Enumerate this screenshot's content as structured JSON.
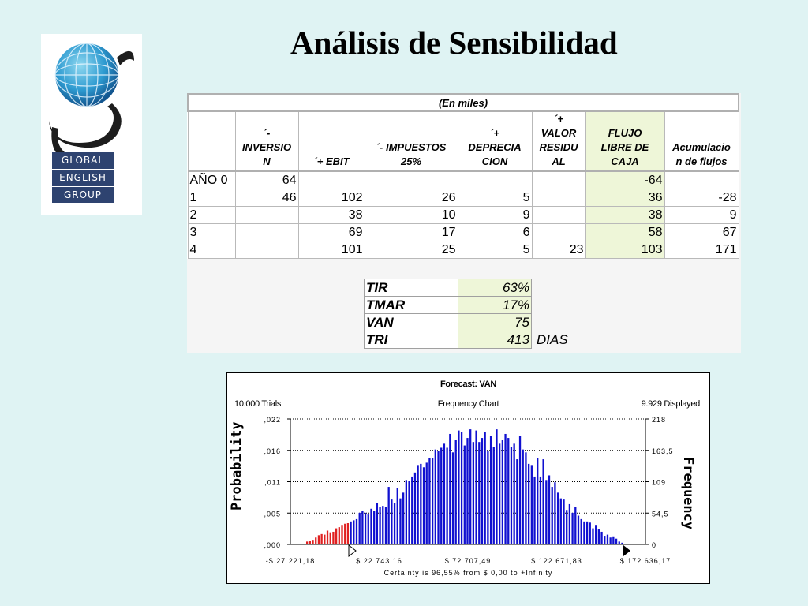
{
  "title": "Análisis de Sensibilidad",
  "logo": {
    "lines": [
      "GLOBAL",
      "ENGLISH",
      "GROUP"
    ]
  },
  "table": {
    "caption": "(En miles)",
    "headers": [
      {
        "lines": [
          ""
        ]
      },
      {
        "lines": [
          "´-",
          "INVERSIO",
          "N"
        ]
      },
      {
        "lines": [
          "´+ EBIT"
        ]
      },
      {
        "lines": [
          "´- IMPUESTOS",
          "25%"
        ]
      },
      {
        "lines": [
          "´+",
          "DEPRECIA",
          "CION"
        ]
      },
      {
        "lines": [
          "´+",
          "VALOR",
          "RESIDU",
          "AL"
        ]
      },
      {
        "lines": [
          "FLUJO",
          "LIBRE DE",
          "CAJA"
        ]
      },
      {
        "lines": [
          "Acumulacio",
          "n de flujos"
        ]
      }
    ],
    "rows": [
      [
        "AÑO 0",
        "64",
        "",
        "",
        "",
        "",
        "-64",
        ""
      ],
      [
        "1",
        "46",
        "102",
        "26",
        "5",
        "",
        "36",
        "-28"
      ],
      [
        "2",
        "",
        "38",
        "10",
        "9",
        "",
        "38",
        "9"
      ],
      [
        "3",
        "",
        "69",
        "17",
        "6",
        "",
        "58",
        "67"
      ],
      [
        "4",
        "",
        "101",
        "25",
        "5",
        "23",
        "103",
        "171"
      ]
    ]
  },
  "metrics": [
    {
      "label": "TIR",
      "value": "63%",
      "unit": ""
    },
    {
      "label": "TMAR",
      "value": "17%",
      "unit": ""
    },
    {
      "label": "VAN",
      "value": "75",
      "unit": ""
    },
    {
      "label": "TRI",
      "value": "413",
      "unit": "DIAS"
    }
  ],
  "colors": {
    "background": "#dff3f3",
    "highlight": "#eef6d8",
    "bar_main": "#1010d0",
    "bar_tail": "#e02020",
    "logo_blue": "#2e4370"
  },
  "chart": {
    "forecast_title": "Forecast: VAN",
    "trials": "10.000 Trials",
    "chart_title": "Frequency Chart",
    "displayed": "9.929 Displayed",
    "y_left_label": "Probability",
    "y_right_label": "Frequency",
    "y_left_ticks": [
      ",000",
      ",005",
      ",011",
      ",016",
      ",022"
    ],
    "y_right_ticks": [
      "0",
      "54,5",
      "109",
      "163,5",
      "218"
    ],
    "x_ticks": [
      "-$ 27.221,18",
      "$ 22.743,16",
      "$ 72.707,49",
      "$ 122.671,83",
      "$ 172.636,17"
    ],
    "certainty": "Certainty is 96,55% from $ 0,00 to +Infinity"
  },
  "chart_data": {
    "type": "bar",
    "title": "Forecast: VAN",
    "xlabel": "",
    "ylabel": "Probability",
    "y2label": "Frequency",
    "ylim": [
      0,
      218
    ],
    "x_range": [
      -27221.18,
      172636.17
    ],
    "tail_threshold": 0,
    "values": [
      5,
      6,
      8,
      12,
      16,
      18,
      17,
      24,
      21,
      22,
      28,
      30,
      34,
      36,
      37,
      40,
      42,
      44,
      55,
      58,
      55,
      52,
      62,
      58,
      72,
      65,
      67,
      65,
      100,
      78,
      72,
      98,
      80,
      90,
      112,
      110,
      118,
      125,
      138,
      140,
      134,
      142,
      150,
      150,
      165,
      162,
      168,
      175,
      168,
      192,
      160,
      182,
      198,
      195,
      172,
      185,
      200,
      178,
      198,
      178,
      185,
      195,
      162,
      188,
      170,
      200,
      175,
      182,
      192,
      185,
      170,
      175,
      148,
      188,
      165,
      160,
      140,
      138,
      118,
      150,
      118,
      148,
      112,
      120,
      100,
      108,
      90,
      80,
      78,
      60,
      70,
      55,
      65,
      50,
      44,
      40,
      40,
      38,
      28,
      34,
      26,
      22,
      15,
      17,
      12,
      14,
      10,
      5,
      3
    ]
  }
}
